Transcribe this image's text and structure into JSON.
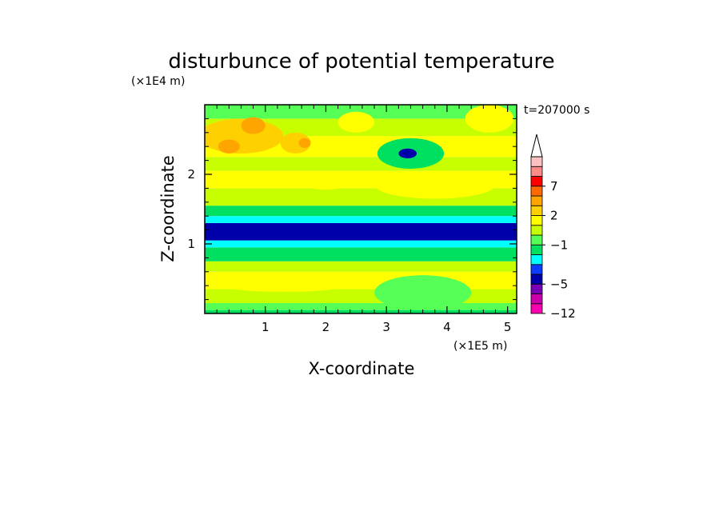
{
  "chart_data": {
    "type": "heatmap",
    "title": "disturbunce of potential temperature",
    "xlabel": "X-coordinate",
    "ylabel": "Z-coordinate",
    "x_unit": "(×1E5 m)",
    "y_unit": "(×1E4 m)",
    "time_label": "t=207000 s",
    "xlim": [
      0,
      5.15
    ],
    "ylim": [
      0,
      3.0
    ],
    "x_ticks": [
      1,
      2,
      3,
      4,
      5
    ],
    "x_tick_labels": [
      "1",
      "2",
      "3",
      "4",
      "5"
    ],
    "y_ticks": [
      1,
      2
    ],
    "y_tick_labels": [
      "1",
      "2"
    ],
    "colorbar": {
      "levels": [
        -12,
        -9,
        -7,
        -5,
        -4,
        -3,
        -2,
        -1,
        0,
        1,
        2,
        3,
        5,
        7,
        9,
        11
      ],
      "colors": [
        "#ff00b0",
        "#cc00aa",
        "#7a00b8",
        "#0000aa",
        "#0a3dff",
        "#00ffff",
        "#00e060",
        "#55ff55",
        "#c8ff00",
        "#ffff00",
        "#ffd000",
        "#ffa500",
        "#ff6a00",
        "#ff0000",
        "#ff8a8a",
        "#ffc0c0"
      ],
      "tick_values": [
        -12,
        -5,
        -1,
        2,
        7
      ],
      "tick_labels": [
        "−12",
        "−5",
        "−1",
        "2",
        "7"
      ],
      "extend": "max"
    },
    "bands": [
      {
        "z": [
          0.0,
          0.05
        ],
        "value": -1.5
      },
      {
        "z": [
          0.05,
          0.15
        ],
        "value": -0.5
      },
      {
        "z": [
          0.15,
          0.35
        ],
        "value": 0.5
      },
      {
        "z": [
          0.35,
          0.6
        ],
        "value": 1.5
      },
      {
        "z": [
          0.6,
          0.75
        ],
        "value": 0.5
      },
      {
        "z": [
          0.75,
          0.95
        ],
        "value": -1.5
      },
      {
        "z": [
          0.95,
          1.05
        ],
        "value": -2.5
      },
      {
        "z": [
          1.05,
          1.3
        ],
        "value": -4.5
      },
      {
        "z": [
          1.3,
          1.4
        ],
        "value": -2.5
      },
      {
        "z": [
          1.4,
          1.55
        ],
        "value": -1.5
      },
      {
        "z": [
          1.55,
          1.8
        ],
        "value": 0.5
      },
      {
        "z": [
          1.8,
          2.05
        ],
        "value": 1.5
      },
      {
        "z": [
          2.05,
          2.25
        ],
        "value": 0.5
      },
      {
        "z": [
          2.25,
          2.55
        ],
        "value": 1.5
      },
      {
        "z": [
          2.55,
          2.8
        ],
        "value": 0.5
      },
      {
        "z": [
          2.8,
          3.0
        ],
        "value": -0.5
      }
    ],
    "patches": [
      {
        "x": 0.6,
        "z": 2.55,
        "rx": 0.7,
        "rz": 0.25,
        "value": 2.5
      },
      {
        "x": 0.4,
        "z": 2.4,
        "rx": 0.18,
        "rz": 0.1,
        "value": 4.0
      },
      {
        "x": 0.8,
        "z": 2.7,
        "rx": 0.2,
        "rz": 0.12,
        "value": 4.0
      },
      {
        "x": 1.5,
        "z": 2.45,
        "rx": 0.25,
        "rz": 0.15,
        "value": 2.5
      },
      {
        "x": 1.65,
        "z": 2.45,
        "rx": 0.1,
        "rz": 0.07,
        "value": 4.0
      },
      {
        "x": 3.4,
        "z": 2.3,
        "rx": 0.55,
        "rz": 0.22,
        "value": -1.5
      },
      {
        "x": 3.35,
        "z": 2.3,
        "rx": 0.15,
        "rz": 0.07,
        "value": -4.5
      },
      {
        "x": 3.8,
        "z": 1.85,
        "rx": 1.0,
        "rz": 0.2,
        "value": 1.5
      },
      {
        "x": 2.0,
        "z": 1.9,
        "rx": 0.4,
        "rz": 0.12,
        "value": 1.5
      },
      {
        "x": 3.6,
        "z": 0.3,
        "rx": 0.8,
        "rz": 0.25,
        "value": -0.5
      },
      {
        "x": 1.3,
        "z": 0.45,
        "rx": 1.2,
        "rz": 0.14,
        "value": 1.5
      },
      {
        "x": 2.5,
        "z": 2.75,
        "rx": 0.3,
        "rz": 0.15,
        "value": 1.5
      },
      {
        "x": 4.7,
        "z": 2.8,
        "rx": 0.4,
        "rz": 0.2,
        "value": 1.5
      }
    ]
  }
}
